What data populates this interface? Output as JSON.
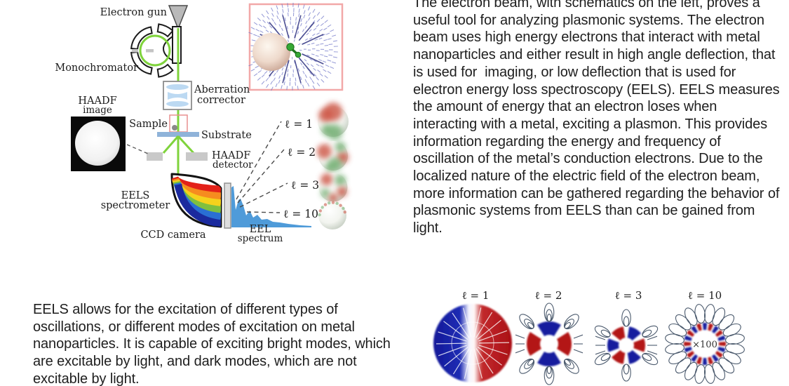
{
  "paragraphs": {
    "right": "The electron beam, with schematics on the left, proves a useful tool for analyzing plasmonic systems. The electron beam uses high energy electrons that interact with metal nanoparticles and either result in high angle deflection, that is used for  imaging, or low deflection that is used for electron energy loss spectroscopy (EELS). EELS measures the amount of energy that an electron loses when interacting with a metal, exciting a plasmon. This provides information regarding the energy and frequency of oscillation of the metal’s conduction electrons. Due to the localized nature of the electric field of the electron beam, more information can be gathered regarding the behavior of plasmonic systems from EELS than can be gained from light.",
    "bottom_left": "EELS allows for the excitation of different types of oscillations, or different modes of excitation on metal nanoparticles. It is capable of exciting bright modes, which are excitable by light, and dark modes, which are not excitable by light."
  },
  "schematic": {
    "labels": {
      "electron_gun": "Electron gun",
      "monochromator": "Monochromator",
      "haadf_image": [
        "HAADF",
        "image"
      ],
      "aberration": [
        "Aberration",
        "corrector"
      ],
      "sample": "Sample",
      "substrate": "Substrate",
      "haadf_detector": [
        "HAADF",
        "detector"
      ],
      "eels_spectrometer": [
        "EELS",
        "spectrometer"
      ],
      "ccd_camera": "CCD camera",
      "eel_spectrum": [
        "EEL",
        "spectrum"
      ]
    },
    "mode_labels": [
      "ℓ = 1",
      "ℓ = 2",
      "ℓ = 3",
      "ℓ = 10"
    ]
  },
  "modes_figure": {
    "items": [
      {
        "label": "ℓ = 1",
        "lobes": 2
      },
      {
        "label": "ℓ = 2",
        "lobes": 4
      },
      {
        "label": "ℓ = 3",
        "lobes": 6
      },
      {
        "label": "ℓ = 10",
        "lobes": 20
      }
    ],
    "annotation": "×100"
  },
  "colors": {
    "beam_green": "#7fd33c",
    "mode_red": "#b31217",
    "mode_blue": "#141c9e",
    "field_line": "#4c5b6e",
    "spectrum_blue": "#4f9bd9",
    "inset_border": "#f2a8a8",
    "rainbow": [
      "#e32119",
      "#f68c1f",
      "#f5d21c",
      "#7fbf3f",
      "#2a6fd4",
      "#1b2a9e"
    ]
  }
}
